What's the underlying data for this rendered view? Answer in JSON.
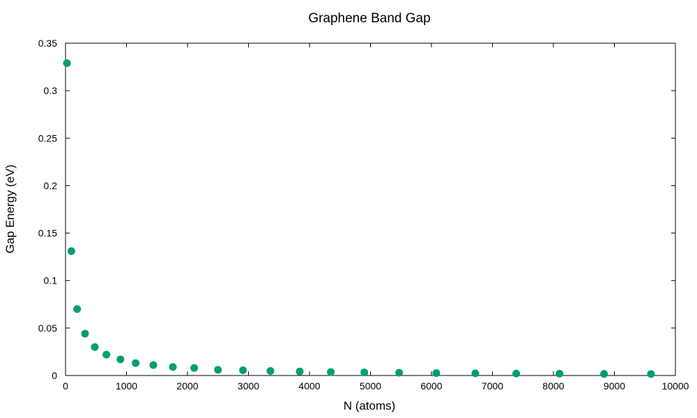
{
  "chart_data": {
    "type": "scatter",
    "title": "Graphene Band Gap",
    "xlabel": "N (atoms)",
    "ylabel": "Gap Energy (eV)",
    "xlim": [
      0,
      10000
    ],
    "ylim": [
      0,
      0.35
    ],
    "x_ticks": [
      "0",
      "1000",
      "2000",
      "3000",
      "4000",
      "5000",
      "6000",
      "7000",
      "8000",
      "9000",
      "10000"
    ],
    "y_ticks": [
      "0",
      "0.05",
      "0.1",
      "0.15",
      "0.2",
      "0.25",
      "0.3",
      "0.35"
    ],
    "grid": false,
    "legend": "none",
    "series": [
      {
        "color": "#009e73",
        "points": [
          {
            "x": 24,
            "y": 0.329
          },
          {
            "x": 96,
            "y": 0.131
          },
          {
            "x": 190,
            "y": 0.07
          },
          {
            "x": 320,
            "y": 0.044
          },
          {
            "x": 480,
            "y": 0.03
          },
          {
            "x": 670,
            "y": 0.022
          },
          {
            "x": 900,
            "y": 0.017
          },
          {
            "x": 1150,
            "y": 0.013
          },
          {
            "x": 1440,
            "y": 0.011
          },
          {
            "x": 1760,
            "y": 0.009
          },
          {
            "x": 2110,
            "y": 0.008
          },
          {
            "x": 2500,
            "y": 0.006
          },
          {
            "x": 2910,
            "y": 0.0055
          },
          {
            "x": 3360,
            "y": 0.0048
          },
          {
            "x": 3840,
            "y": 0.0042
          },
          {
            "x": 4350,
            "y": 0.0037
          },
          {
            "x": 4900,
            "y": 0.0032
          },
          {
            "x": 5470,
            "y": 0.0029
          },
          {
            "x": 6080,
            "y": 0.0026
          },
          {
            "x": 6720,
            "y": 0.0023
          },
          {
            "x": 7390,
            "y": 0.0021
          },
          {
            "x": 8100,
            "y": 0.0019
          },
          {
            "x": 8830,
            "y": 0.0017
          },
          {
            "x": 9600,
            "y": 0.0016
          }
        ]
      }
    ]
  }
}
